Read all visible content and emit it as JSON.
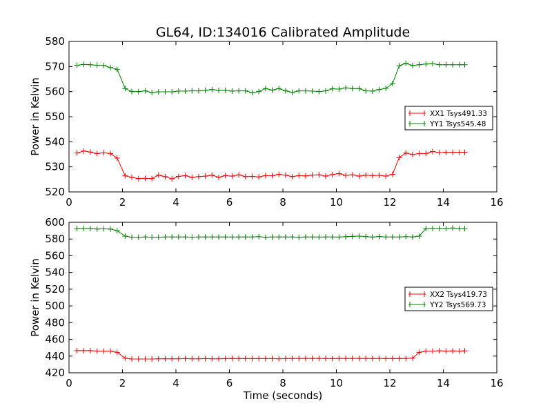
{
  "title": "GL64, ID:134016 Calibrated Amplitude",
  "xlabel": "Time (seconds)",
  "colors": {
    "red": "#ff0000",
    "green": "#008000"
  },
  "chart_data": [
    {
      "type": "line",
      "title": "GL64, ID:134016 Calibrated Amplitude",
      "xlabel": "",
      "ylabel": "Power in Kelvin",
      "xlim": [
        0,
        16
      ],
      "ylim": [
        520,
        580
      ],
      "xticks": [
        0,
        2,
        4,
        6,
        8,
        10,
        12,
        14,
        16
      ],
      "yticks": [
        520,
        530,
        540,
        550,
        560,
        570,
        580
      ],
      "grid": false,
      "legend": "center-right",
      "x": [
        0.3,
        0.55,
        0.8,
        1.05,
        1.3,
        1.55,
        1.8,
        2.1,
        2.35,
        2.6,
        2.85,
        3.1,
        3.35,
        3.6,
        3.85,
        4.1,
        4.35,
        4.6,
        4.85,
        5.1,
        5.35,
        5.6,
        5.85,
        6.1,
        6.35,
        6.6,
        6.85,
        7.1,
        7.35,
        7.6,
        7.85,
        8.1,
        8.35,
        8.6,
        8.85,
        9.1,
        9.35,
        9.6,
        9.85,
        10.1,
        10.35,
        10.6,
        10.85,
        11.1,
        11.35,
        11.6,
        11.85,
        12.1,
        12.35,
        12.6,
        12.85,
        13.1,
        13.35,
        13.6,
        13.85,
        14.1,
        14.35,
        14.6,
        14.8
      ],
      "series": [
        {
          "name": "XX1 Tsys491.33",
          "color": "#ff0000",
          "values": [
            535.5,
            536.3,
            535.9,
            535.3,
            535.6,
            535.3,
            533.5,
            526.4,
            525.8,
            525.3,
            525.4,
            525.3,
            526.7,
            526.1,
            525.2,
            526.2,
            526.5,
            525.8,
            526.1,
            526.3,
            526.7,
            525.8,
            526.5,
            526.3,
            526.8,
            526.1,
            526.2,
            526.0,
            526.5,
            526.5,
            527.0,
            526.7,
            526.1,
            526.5,
            526.4,
            526.7,
            526.8,
            526.3,
            526.9,
            527.3,
            526.6,
            526.8,
            526.3,
            526.7,
            526.5,
            526.6,
            526.3,
            527.0,
            533.7,
            535.5,
            534.9,
            535.3,
            535.3,
            536.1,
            535.7,
            535.8,
            535.8,
            535.8,
            535.8
          ]
        },
        {
          "name": "YY1 Tsys545.48",
          "color": "#008000",
          "values": [
            570.5,
            570.8,
            570.7,
            570.5,
            570.4,
            569.6,
            568.9,
            561.2,
            560.0,
            560.0,
            560.3,
            559.6,
            559.9,
            559.9,
            559.9,
            560.2,
            560.2,
            560.3,
            560.3,
            560.5,
            560.8,
            560.5,
            560.5,
            560.2,
            560.3,
            560.3,
            559.6,
            560.0,
            561.2,
            560.6,
            561.2,
            560.3,
            559.7,
            560.3,
            560.3,
            560.2,
            560.0,
            560.3,
            561.1,
            561.0,
            561.5,
            561.2,
            561.2,
            560.3,
            560.2,
            560.8,
            561.3,
            563.2,
            570.3,
            571.3,
            570.4,
            570.7,
            571.0,
            571.1,
            570.7,
            570.7,
            570.7,
            570.7,
            570.7
          ]
        }
      ]
    },
    {
      "type": "line",
      "title": "",
      "xlabel": "Time (seconds)",
      "ylabel": "Power in Kelvin",
      "xlim": [
        0,
        16
      ],
      "ylim": [
        420,
        600
      ],
      "xticks": [
        0,
        2,
        4,
        6,
        8,
        10,
        12,
        14,
        16
      ],
      "yticks": [
        420,
        440,
        460,
        480,
        500,
        520,
        540,
        560,
        580,
        600
      ],
      "grid": false,
      "legend": "center-right",
      "x": [
        0.3,
        0.55,
        0.8,
        1.05,
        1.3,
        1.55,
        1.8,
        2.1,
        2.35,
        2.6,
        2.85,
        3.1,
        3.35,
        3.6,
        3.85,
        4.1,
        4.35,
        4.6,
        4.85,
        5.1,
        5.35,
        5.6,
        5.85,
        6.1,
        6.35,
        6.6,
        6.85,
        7.1,
        7.35,
        7.6,
        7.85,
        8.1,
        8.35,
        8.6,
        8.85,
        9.1,
        9.35,
        9.6,
        9.85,
        10.1,
        10.35,
        10.6,
        10.85,
        11.1,
        11.35,
        11.6,
        11.85,
        12.1,
        12.35,
        12.6,
        12.85,
        13.1,
        13.35,
        13.6,
        13.85,
        14.1,
        14.35,
        14.6,
        14.8
      ],
      "series": [
        {
          "name": "XX2 Tsys419.73",
          "color": "#ff0000",
          "values": [
            446.5,
            446.5,
            446.5,
            446.0,
            446.0,
            446.0,
            444.5,
            437.5,
            436.5,
            436.5,
            436.5,
            436.5,
            436.8,
            436.8,
            436.8,
            436.8,
            437.0,
            436.8,
            436.8,
            437.0,
            436.8,
            436.8,
            437.0,
            437.2,
            437.0,
            437.0,
            437.0,
            437.0,
            437.0,
            437.0,
            436.8,
            437.0,
            437.2,
            437.2,
            437.2,
            437.2,
            437.2,
            437.2,
            437.0,
            437.2,
            437.2,
            437.2,
            437.2,
            437.2,
            437.2,
            437.2,
            437.0,
            437.2,
            437.0,
            437.2,
            437.5,
            444.5,
            446.0,
            446.0,
            446.3,
            446.0,
            446.2,
            446.0,
            446.2
          ]
        },
        {
          "name": "YY2 Tsys569.73",
          "color": "#008000",
          "values": [
            592.5,
            592.5,
            592.5,
            592.0,
            592.2,
            592.0,
            590.0,
            583.5,
            582.2,
            582.2,
            582.5,
            582.2,
            582.2,
            582.5,
            582.5,
            582.5,
            582.5,
            582.2,
            582.5,
            582.5,
            582.5,
            582.5,
            582.5,
            582.3,
            582.5,
            582.5,
            582.5,
            582.8,
            582.0,
            582.5,
            582.5,
            582.5,
            582.5,
            582.0,
            582.5,
            582.5,
            582.3,
            582.5,
            582.5,
            582.3,
            582.8,
            583.2,
            583.5,
            583.0,
            582.3,
            583.0,
            582.5,
            582.5,
            582.5,
            582.8,
            582.5,
            583.5,
            592.5,
            592.5,
            592.5,
            592.5,
            593.2,
            592.5,
            592.5
          ]
        }
      ]
    }
  ]
}
